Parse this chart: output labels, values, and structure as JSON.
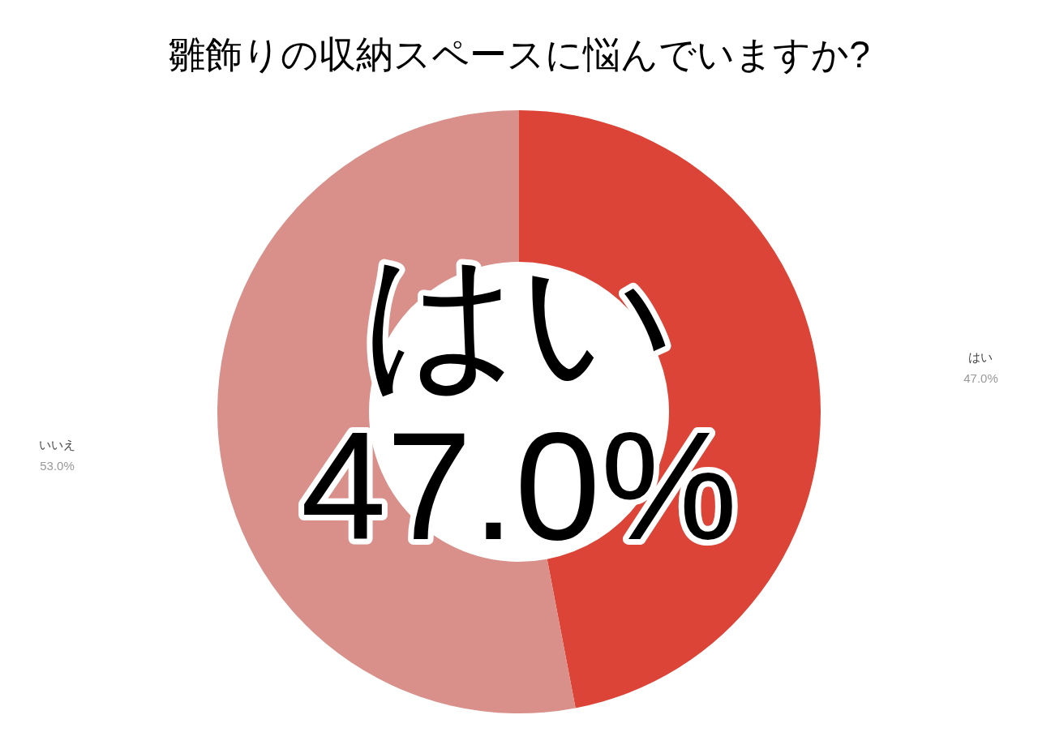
{
  "chart_data": {
    "type": "donut",
    "title": "雛飾りの収納スペースに悩んでいますか?",
    "categories": [
      "はい",
      "いいえ"
    ],
    "values": [
      47.0,
      53.0
    ],
    "value_labels": [
      "47.0%",
      "53.0%"
    ],
    "colors": [
      "#db4437",
      "#d98f8a"
    ],
    "annotations": [
      "はい",
      "47.0%"
    ],
    "legend": false
  }
}
